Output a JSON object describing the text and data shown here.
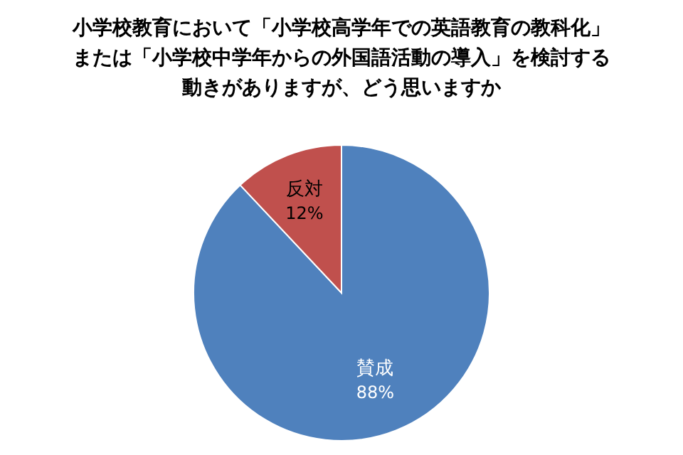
{
  "chart_data": {
    "type": "pie",
    "title": "小学校教育において「小学校高学年での英語教育の教科化」または「小学校中学年からの外国語活動の導入」を検討する動きがありますが、どう思いますか",
    "categories": [
      "賛成",
      "反対"
    ],
    "values": [
      88,
      12
    ],
    "value_labels": [
      "88%",
      "12%"
    ],
    "colors": [
      "#4f81bd",
      "#c0504d"
    ]
  }
}
